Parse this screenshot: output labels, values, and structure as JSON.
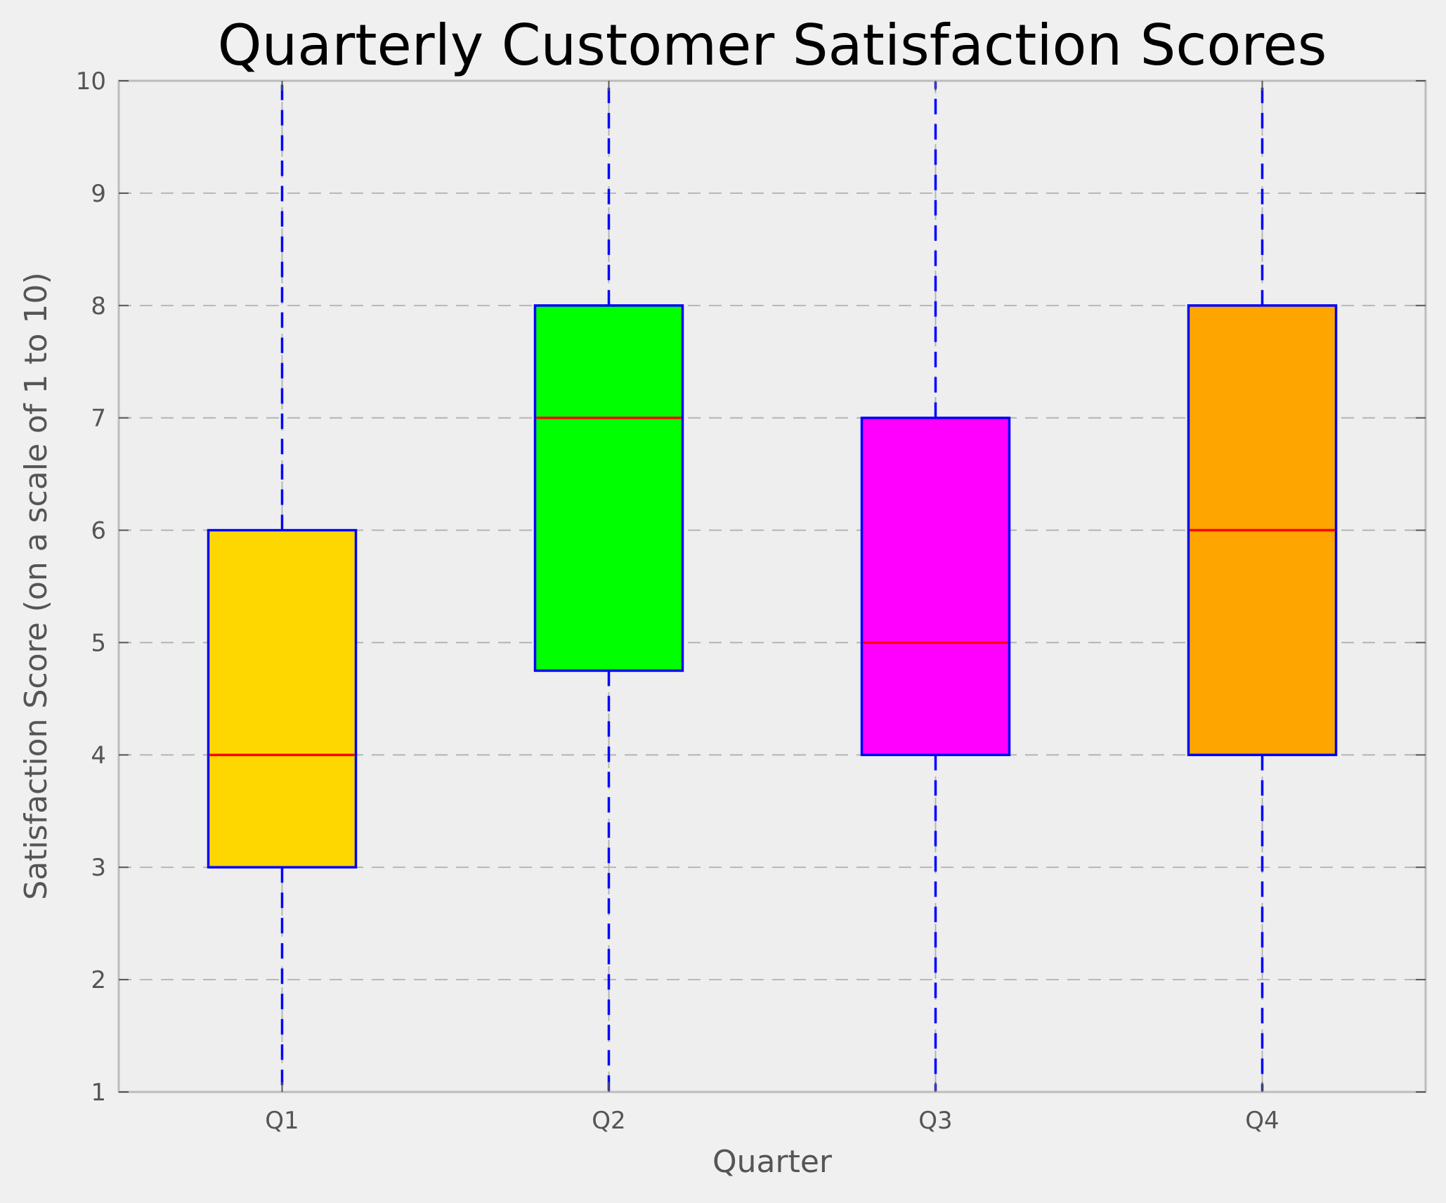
{
  "chart_data": {
    "type": "box",
    "title": "Quarterly Customer Satisfaction Scores",
    "xlabel": "Quarter",
    "ylabel": "Satisfaction Score (on a scale of 1 to 10)",
    "ylim": [
      1,
      10
    ],
    "yticks": [
      "1",
      "2",
      "3",
      "4",
      "5",
      "6",
      "7",
      "8",
      "9",
      "10"
    ],
    "grid": true,
    "categories": [
      "Q1",
      "Q2",
      "Q3",
      "Q4"
    ],
    "boxes": [
      {
        "category": "Q1",
        "whisker_low": 1,
        "q1": 3,
        "median": 4,
        "q3": 6,
        "whisker_high": 10,
        "color": "#ffd700"
      },
      {
        "category": "Q2",
        "whisker_low": 1,
        "q1": 4.75,
        "median": 7,
        "q3": 8,
        "whisker_high": 10,
        "color": "#00ff00"
      },
      {
        "category": "Q3",
        "whisker_low": 1,
        "q1": 4,
        "median": 5,
        "q3": 7,
        "whisker_high": 10,
        "color": "#ff00ff"
      },
      {
        "category": "Q4",
        "whisker_low": 1,
        "q1": 4,
        "median": 6,
        "q3": 8,
        "whisker_high": 10,
        "color": "#ffa500"
      }
    ],
    "colors": {
      "box_edge": "#0000ff",
      "whisker": "#0000ff",
      "median": "#ff0000",
      "grid": "#b0b0b0",
      "plot_background": "#eeeeee",
      "figure_background": "#f0f0f0",
      "frame": "#bcbcbc"
    }
  }
}
